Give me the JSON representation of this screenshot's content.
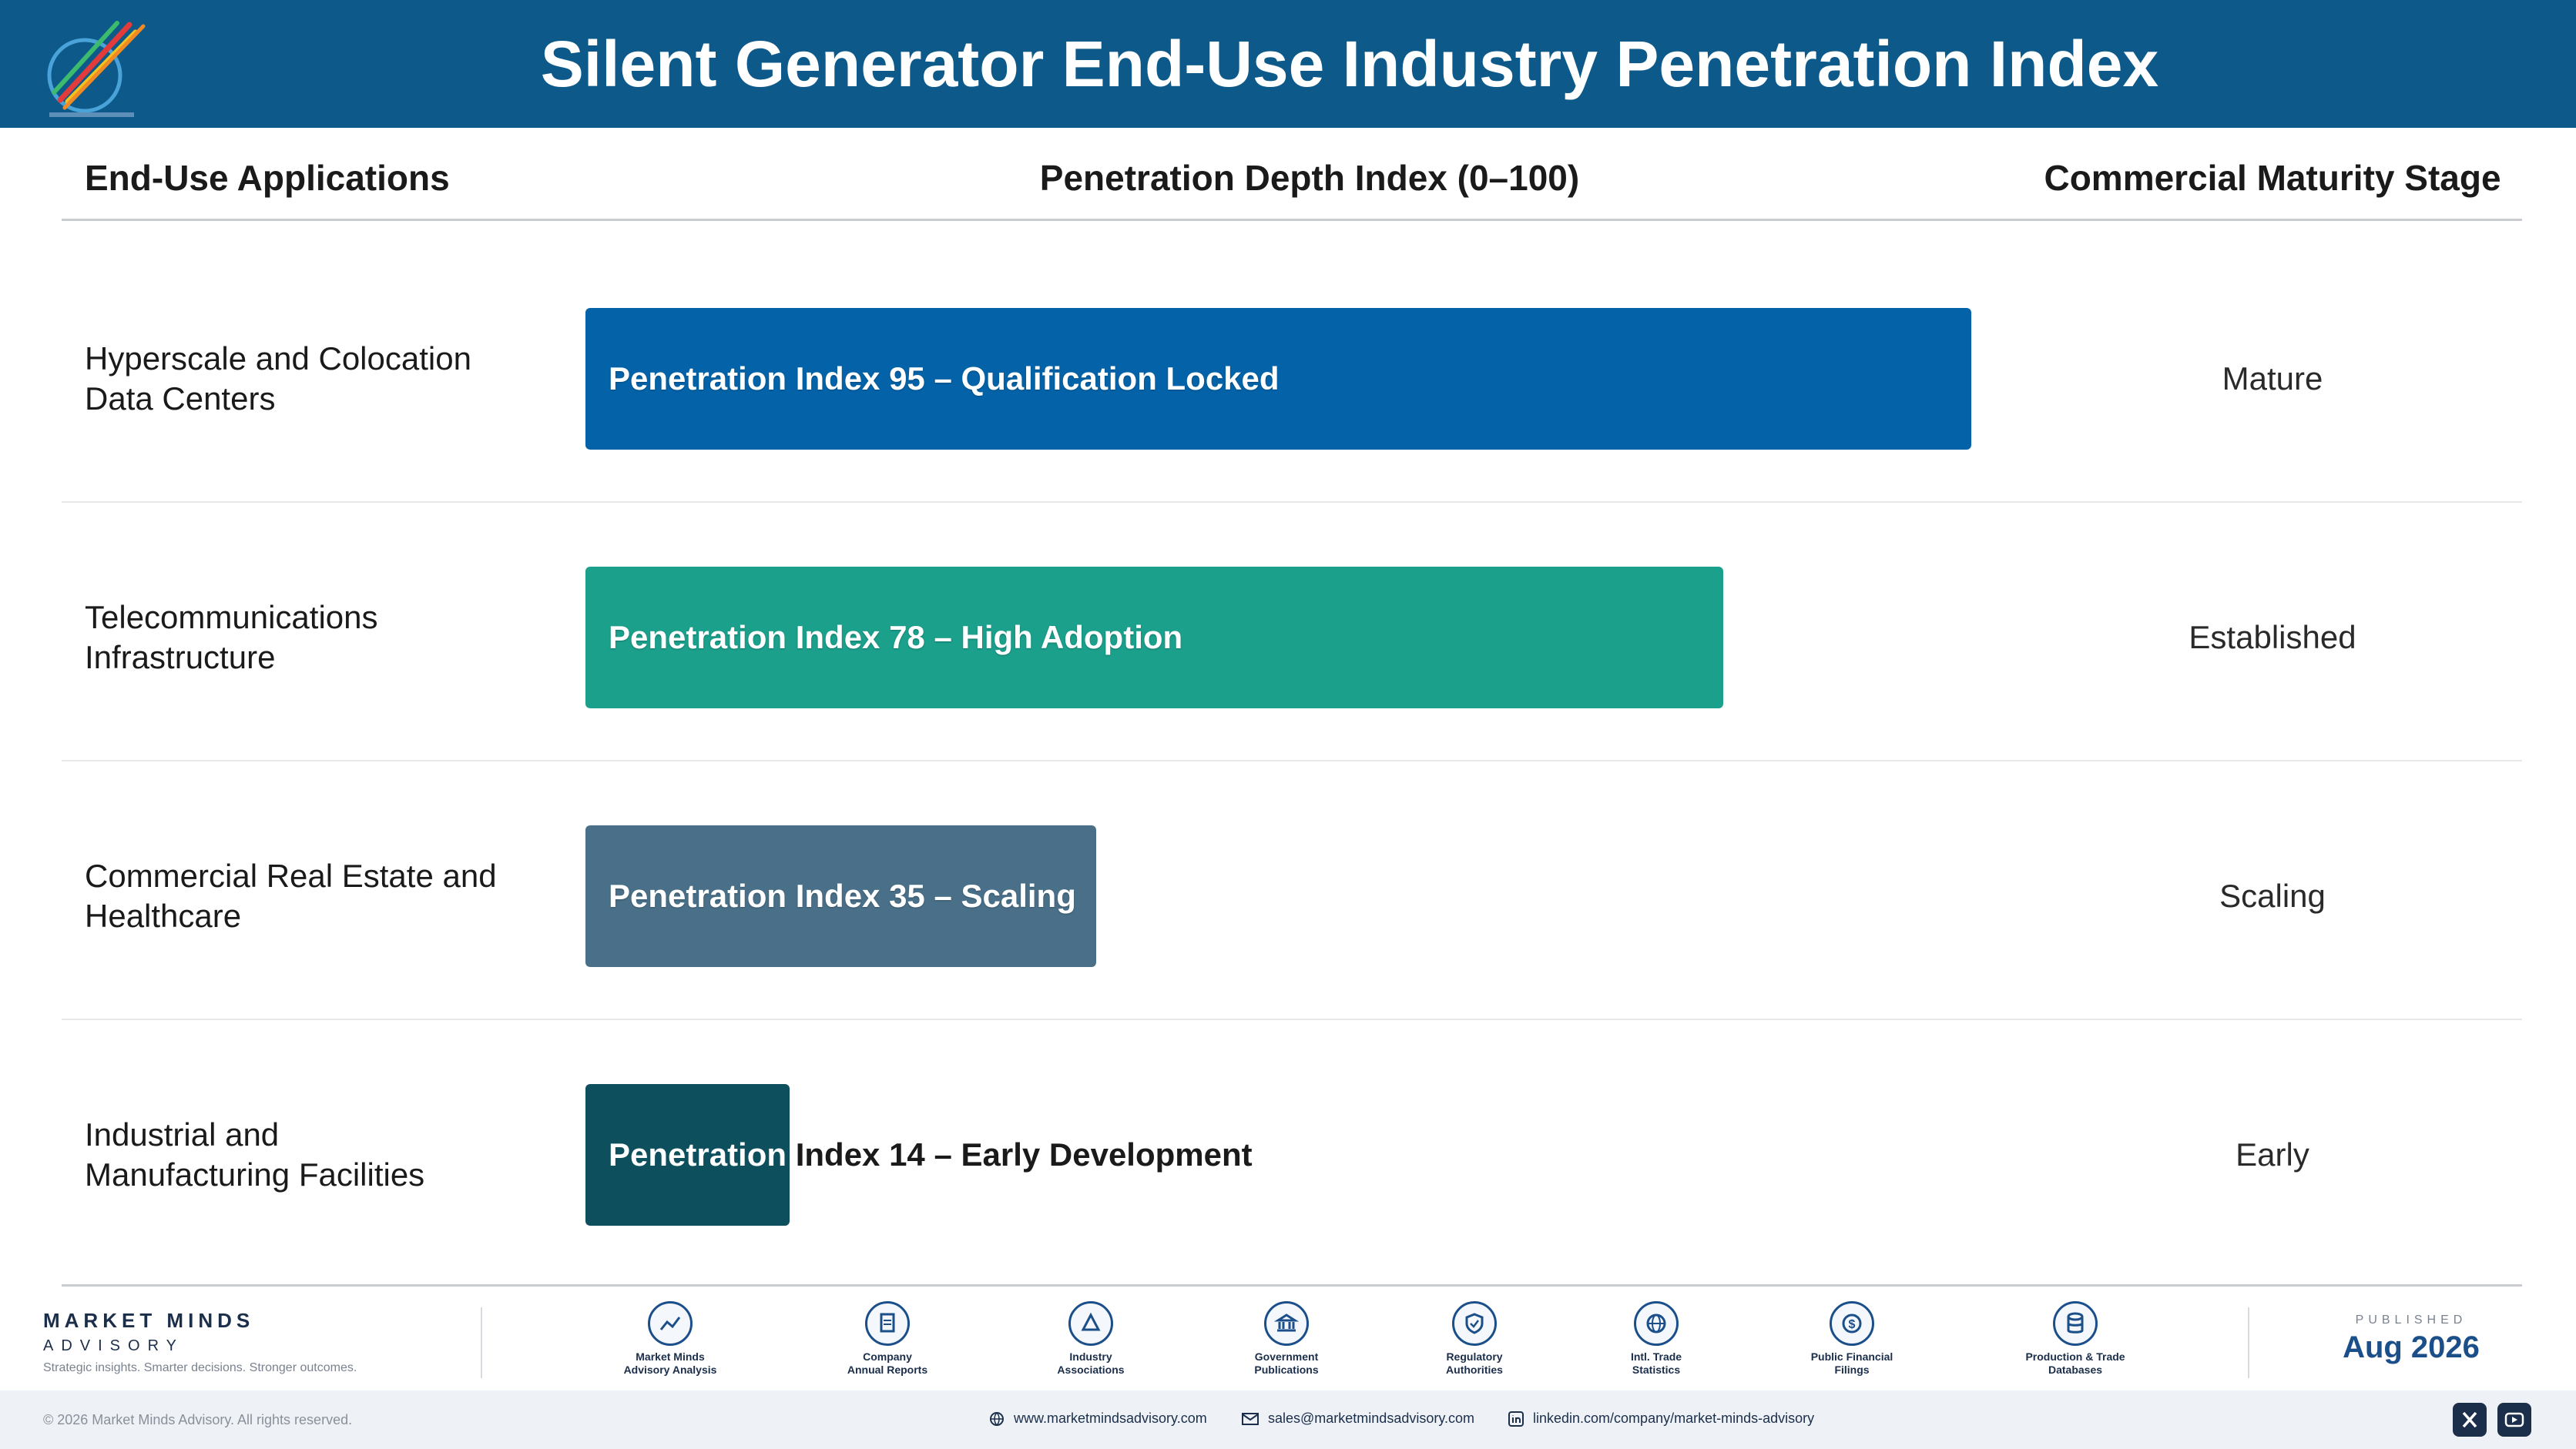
{
  "header": {
    "title": "Silent Generator End-Use Industry Penetration Index"
  },
  "columns": {
    "applications": "End-Use Applications",
    "index": "Penetration Depth Index (0–100)",
    "stage": "Commercial Maturity Stage"
  },
  "chart_data": {
    "type": "bar",
    "orientation": "horizontal",
    "xlim": [
      0,
      100
    ],
    "categories": [
      "Hyperscale and Colocation Data Centers",
      "Telecommunications Infrastructure",
      "Commercial Real Estate and Healthcare",
      "Industrial and Manufacturing Facilities"
    ],
    "values": [
      95,
      78,
      35,
      14
    ],
    "bar_labels": [
      "Penetration Index 95 – Qualification Locked",
      "Penetration Index 78 – High Adoption",
      "Penetration Index 35 – Scaling",
      "Penetration Index 14 – Early Development"
    ],
    "stages": [
      "Mature",
      "Established",
      "Scaling",
      "Early"
    ],
    "colors": [
      "#0463a8",
      "#1ba08c",
      "#4a7089",
      "#0e4f5e"
    ]
  },
  "rows": [
    {
      "line1": "Hyperscale and Colocation",
      "line2": "Data Centers"
    },
    {
      "line1": "Telecommunications",
      "line2": "Infrastructure"
    },
    {
      "line1": "Commercial Real Estate and",
      "line2": "Healthcare"
    },
    {
      "line1": "Industrial and",
      "line2": "Manufacturing Facilities"
    }
  ],
  "footer": {
    "brand_name": "MARKET MINDS",
    "brand_sub": "ADVISORY",
    "tagline": "Strategic insights. Smarter decisions. Stronger outcomes.",
    "sources": [
      {
        "line1": "Market Minds",
        "line2": "Advisory Analysis",
        "icon": "chart-trend-icon"
      },
      {
        "line1": "Company",
        "line2": "Annual Reports",
        "icon": "document-icon"
      },
      {
        "line1": "Industry",
        "line2": "Associations",
        "icon": "network-icon"
      },
      {
        "line1": "Government",
        "line2": "Publications",
        "icon": "government-building-icon"
      },
      {
        "line1": "Regulatory",
        "line2": "Authorities",
        "icon": "shield-check-icon"
      },
      {
        "line1": "Intl. Trade",
        "line2": "Statistics",
        "icon": "globe-icon"
      },
      {
        "line1": "Public Financial",
        "line2": "Filings",
        "icon": "dollar-coin-icon"
      },
      {
        "line1": "Production & Trade",
        "line2": "Databases",
        "icon": "database-icon"
      }
    ],
    "published_label": "PUBLISHED",
    "published_date": "Aug 2026",
    "copyright": "© 2026 Market Minds Advisory. All rights reserved.",
    "website": "www.marketmindsadvisory.com",
    "email": "sales@marketmindsadvisory.com",
    "linkedin": "linkedin.com/company/market-minds-advisory"
  }
}
